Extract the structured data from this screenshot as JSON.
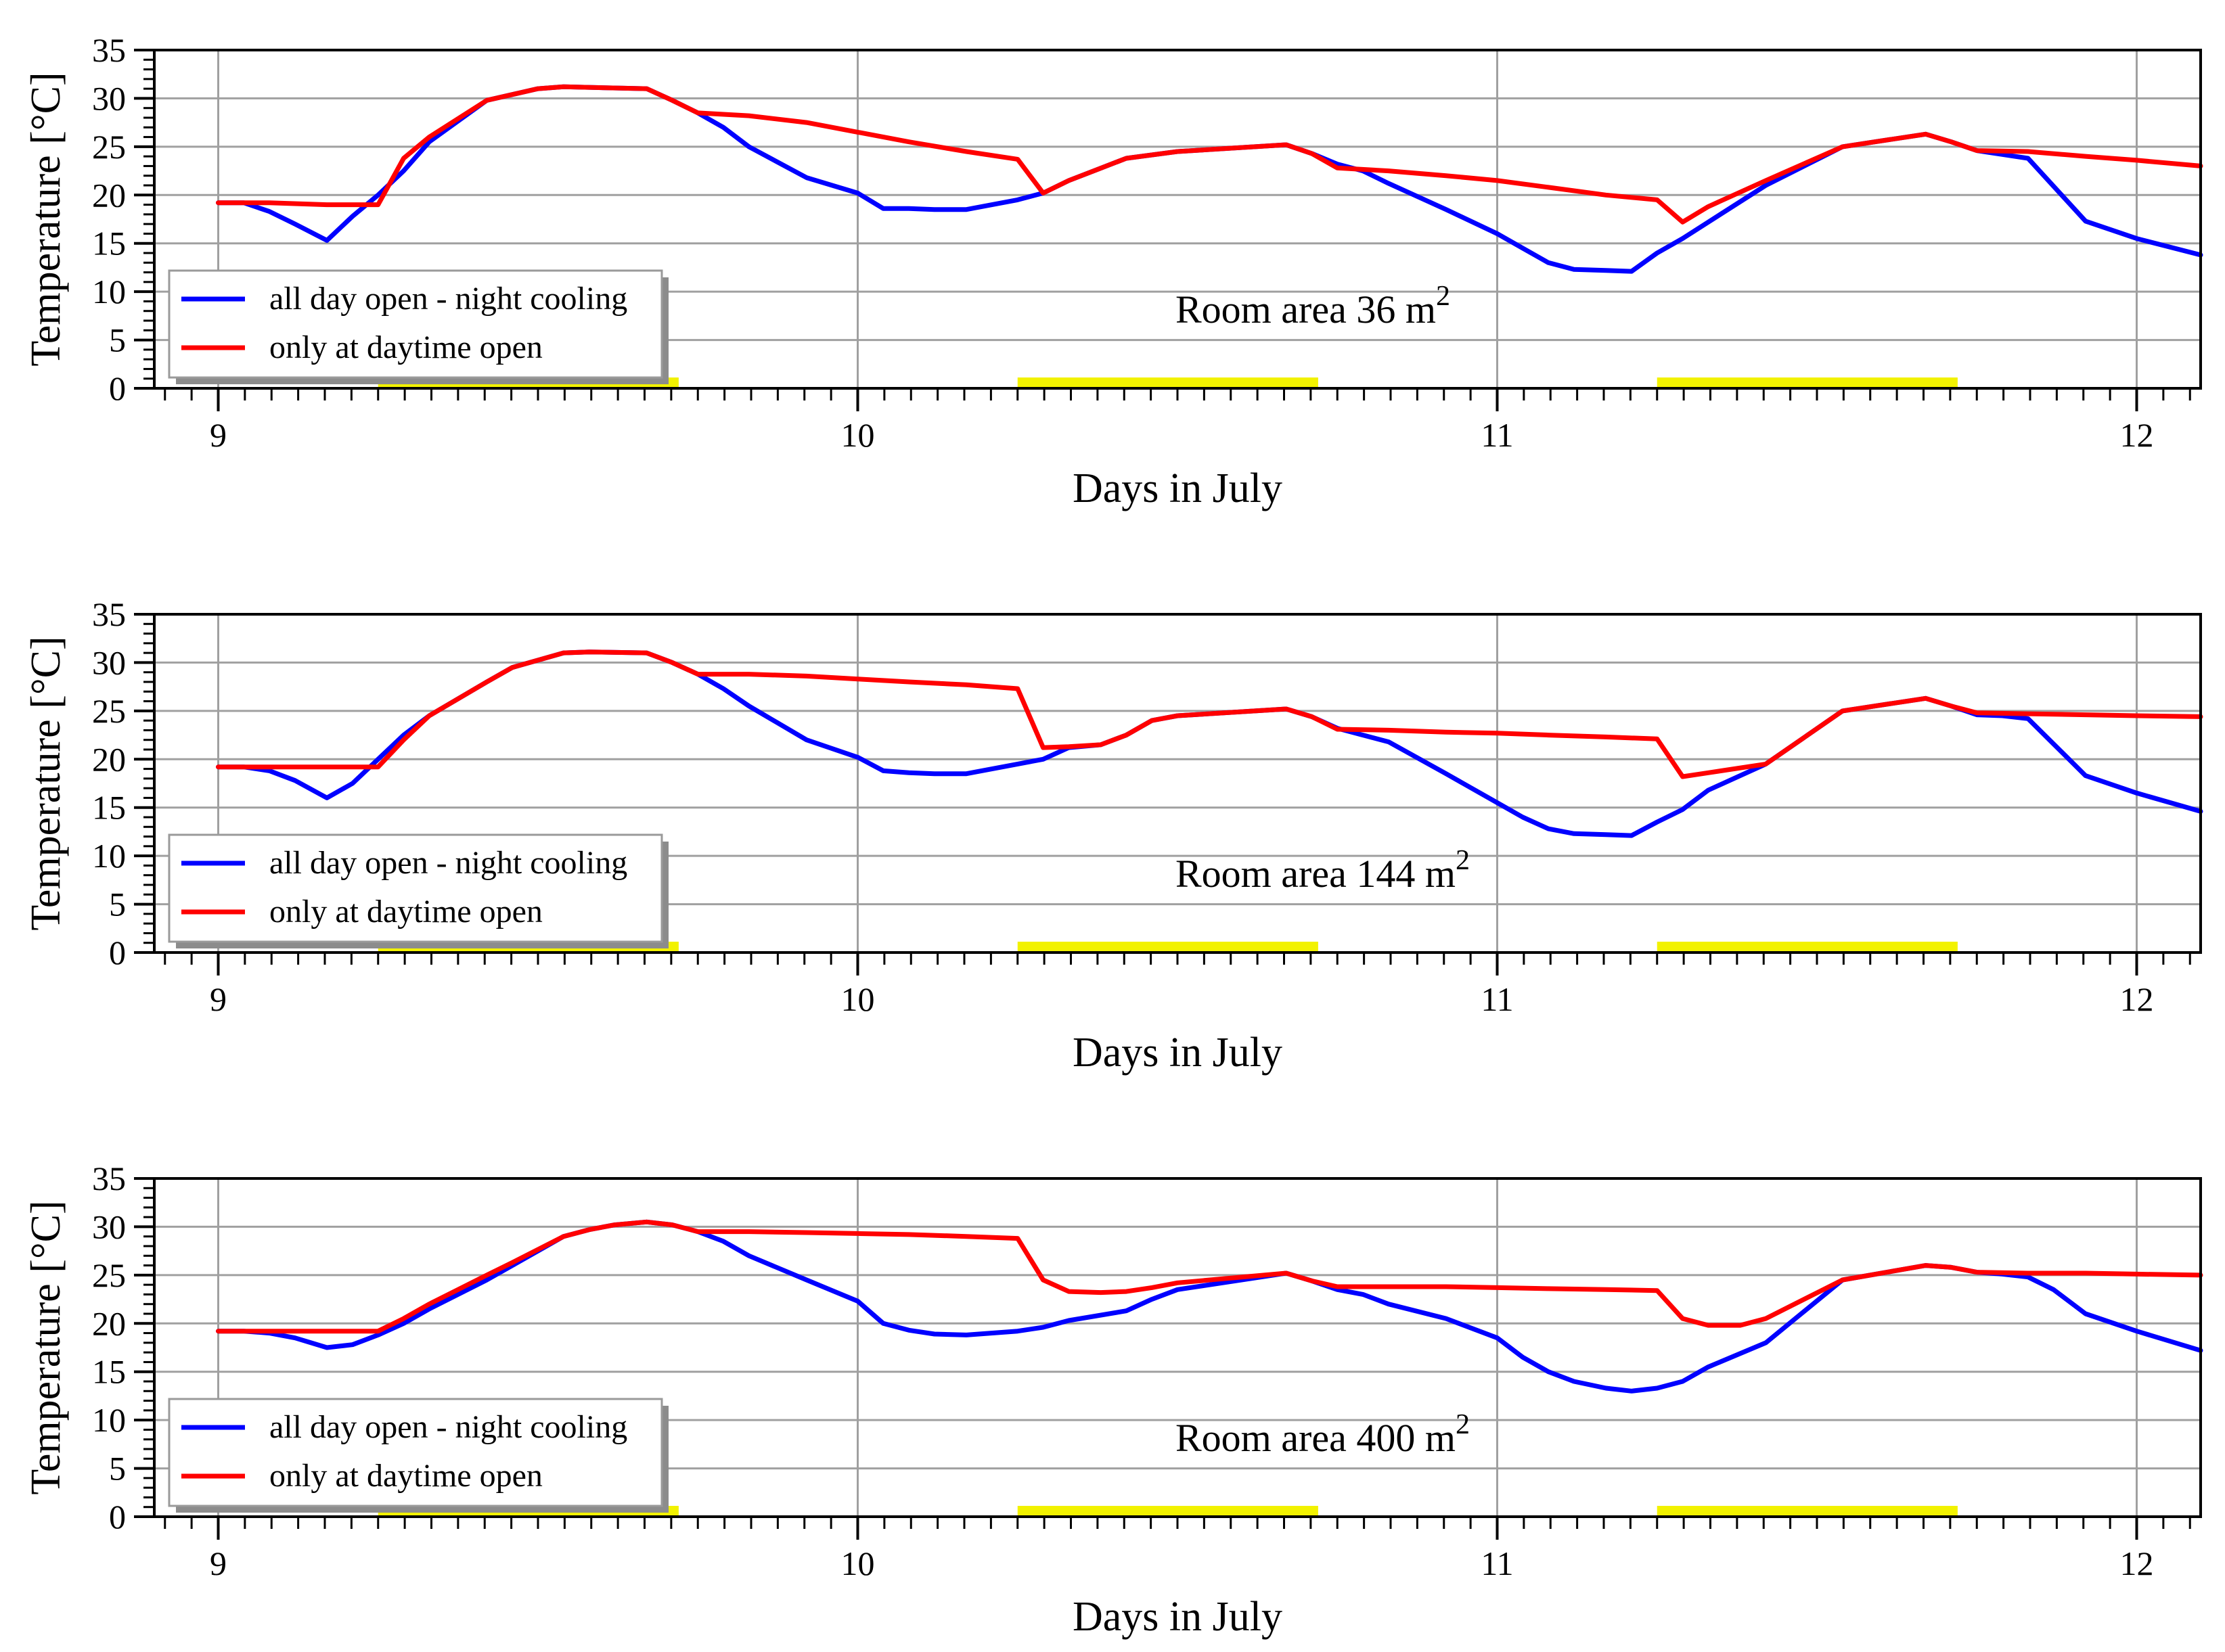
{
  "figure_title": "",
  "colors": {
    "series1": "#0000ff",
    "series2": "#ff0000",
    "highlight": "#f2f200",
    "grid": "#a0a0a0"
  },
  "chart_data": [
    {
      "type": "line",
      "annotation": "Room area 36 m",
      "annotation_sup": "2",
      "xlabel": "Days in July",
      "ylabel": "Temperature [°C]",
      "xlim": [
        8.9,
        12.1
      ],
      "ylim": [
        0,
        35
      ],
      "xticks": [
        9,
        10,
        11,
        12
      ],
      "xtick_labels": [
        "9",
        "10",
        "11",
        "12"
      ],
      "yticks": [
        0,
        5,
        10,
        15,
        20,
        25,
        30,
        35
      ],
      "ytick_labels": [
        "0",
        "5",
        "10",
        "15",
        "20",
        "25",
        "30",
        "35"
      ],
      "grid": true,
      "legend_position": "lower-left",
      "highlight_ranges": [
        [
          9.25,
          9.72
        ],
        [
          10.25,
          10.72
        ],
        [
          11.25,
          11.72
        ]
      ],
      "series": [
        {
          "name": "all day open - night cooling",
          "x": [
            9.0,
            9.04,
            9.08,
            9.12,
            9.17,
            9.21,
            9.25,
            9.29,
            9.33,
            9.42,
            9.5,
            9.54,
            9.67,
            9.71,
            9.75,
            9.79,
            9.83,
            9.92,
            10.0,
            10.04,
            10.08,
            10.12,
            10.17,
            10.25,
            10.29,
            10.33,
            10.42,
            10.5,
            10.67,
            10.71,
            10.75,
            10.79,
            10.83,
            10.92,
            11.0,
            11.04,
            11.08,
            11.12,
            11.17,
            11.21,
            11.25,
            11.29,
            11.33,
            11.42,
            11.54,
            11.67,
            11.71,
            11.75,
            11.79,
            11.83,
            11.92,
            12.0,
            12.1
          ],
          "y": [
            19.2,
            19.2,
            18.3,
            17.0,
            15.3,
            17.8,
            20.0,
            22.5,
            25.5,
            29.8,
            31.0,
            31.2,
            31.0,
            29.8,
            28.5,
            27.0,
            25.0,
            21.8,
            20.2,
            18.6,
            18.6,
            18.5,
            18.5,
            19.5,
            20.2,
            21.5,
            23.8,
            24.5,
            25.2,
            24.3,
            23.2,
            22.5,
            21.2,
            18.5,
            16.0,
            14.5,
            13.0,
            12.3,
            12.2,
            12.1,
            14.0,
            15.5,
            17.2,
            21.0,
            25.0,
            26.3,
            25.5,
            24.6,
            24.2,
            23.8,
            17.3,
            15.5,
            13.8
          ]
        },
        {
          "name": "only at daytime open",
          "x": [
            9.0,
            9.08,
            9.17,
            9.21,
            9.25,
            9.29,
            9.33,
            9.42,
            9.5,
            9.54,
            9.67,
            9.71,
            9.75,
            9.83,
            9.92,
            10.0,
            10.08,
            10.17,
            10.25,
            10.29,
            10.33,
            10.42,
            10.5,
            10.67,
            10.71,
            10.75,
            10.83,
            10.92,
            11.0,
            11.08,
            11.17,
            11.25,
            11.29,
            11.33,
            11.42,
            11.54,
            11.67,
            11.71,
            11.75,
            11.83,
            11.92,
            12.0,
            12.1
          ],
          "y": [
            19.2,
            19.2,
            19.0,
            19.0,
            19.0,
            23.8,
            26.0,
            29.8,
            31.0,
            31.2,
            31.0,
            29.8,
            28.5,
            28.2,
            27.5,
            26.5,
            25.5,
            24.5,
            23.7,
            20.2,
            21.5,
            23.8,
            24.5,
            25.2,
            24.3,
            22.8,
            22.5,
            22.0,
            21.5,
            20.8,
            20.0,
            19.5,
            17.2,
            18.8,
            21.5,
            25.0,
            26.3,
            25.5,
            24.6,
            24.5,
            24.0,
            23.6,
            23.0
          ]
        }
      ]
    },
    {
      "type": "line",
      "annotation": "Room area 144 m",
      "annotation_sup": "2",
      "xlabel": "Days in July",
      "ylabel": "Temperature [°C]",
      "xlim": [
        8.9,
        12.1
      ],
      "ylim": [
        0,
        35
      ],
      "xticks": [
        9,
        10,
        11,
        12
      ],
      "xtick_labels": [
        "9",
        "10",
        "11",
        "12"
      ],
      "yticks": [
        0,
        5,
        10,
        15,
        20,
        25,
        30,
        35
      ],
      "ytick_labels": [
        "0",
        "5",
        "10",
        "15",
        "20",
        "25",
        "30",
        "35"
      ],
      "grid": true,
      "legend_position": "lower-left",
      "highlight_ranges": [
        [
          9.25,
          9.72
        ],
        [
          10.25,
          10.72
        ],
        [
          11.25,
          11.72
        ]
      ],
      "series": [
        {
          "name": "all day open - night cooling",
          "x": [
            9.0,
            9.04,
            9.08,
            9.12,
            9.17,
            9.21,
            9.25,
            9.29,
            9.33,
            9.42,
            9.46,
            9.54,
            9.58,
            9.67,
            9.71,
            9.75,
            9.79,
            9.83,
            9.92,
            10.0,
            10.04,
            10.08,
            10.12,
            10.17,
            10.25,
            10.29,
            10.33,
            10.38,
            10.42,
            10.46,
            10.5,
            10.67,
            10.71,
            10.75,
            10.79,
            10.83,
            10.92,
            11.0,
            11.04,
            11.08,
            11.12,
            11.17,
            11.21,
            11.25,
            11.29,
            11.33,
            11.42,
            11.54,
            11.67,
            11.71,
            11.75,
            11.79,
            11.83,
            11.92,
            12.0,
            12.1
          ],
          "y": [
            19.2,
            19.2,
            18.8,
            17.8,
            16.0,
            17.5,
            20.0,
            22.5,
            24.5,
            28.0,
            29.5,
            31.0,
            31.1,
            31.0,
            30.0,
            28.8,
            27.3,
            25.5,
            22.0,
            20.2,
            18.8,
            18.6,
            18.5,
            18.5,
            19.5,
            20.0,
            21.2,
            21.5,
            22.5,
            24.0,
            24.5,
            25.2,
            24.4,
            23.2,
            22.5,
            21.8,
            18.5,
            15.5,
            14.0,
            12.8,
            12.3,
            12.2,
            12.1,
            13.5,
            14.8,
            16.8,
            19.5,
            25.0,
            26.3,
            25.5,
            24.6,
            24.5,
            24.2,
            18.3,
            16.5,
            14.6
          ]
        },
        {
          "name": "only at daytime open",
          "x": [
            9.0,
            9.08,
            9.17,
            9.21,
            9.25,
            9.29,
            9.33,
            9.42,
            9.46,
            9.54,
            9.58,
            9.67,
            9.71,
            9.75,
            9.83,
            9.92,
            10.0,
            10.08,
            10.17,
            10.25,
            10.29,
            10.33,
            10.38,
            10.42,
            10.46,
            10.5,
            10.67,
            10.71,
            10.75,
            10.83,
            10.92,
            11.0,
            11.08,
            11.17,
            11.25,
            11.29,
            11.33,
            11.42,
            11.54,
            11.67,
            11.71,
            11.75,
            11.83,
            11.92,
            12.0,
            12.1
          ],
          "y": [
            19.2,
            19.2,
            19.2,
            19.2,
            19.2,
            22.0,
            24.5,
            28.0,
            29.5,
            31.0,
            31.1,
            31.0,
            30.0,
            28.8,
            28.8,
            28.6,
            28.3,
            28.0,
            27.7,
            27.3,
            21.2,
            21.3,
            21.5,
            22.5,
            24.0,
            24.5,
            25.2,
            24.4,
            23.1,
            23.0,
            22.8,
            22.7,
            22.5,
            22.3,
            22.1,
            18.2,
            18.6,
            19.5,
            25.0,
            26.3,
            25.5,
            24.8,
            24.7,
            24.6,
            24.5,
            24.4
          ]
        }
      ]
    },
    {
      "type": "line",
      "annotation": "Room area 400 m",
      "annotation_sup": "2",
      "xlabel": "Days in July",
      "ylabel": "Temperature [°C]",
      "xlim": [
        8.9,
        12.1
      ],
      "ylim": [
        0,
        35
      ],
      "xticks": [
        9,
        10,
        11,
        12
      ],
      "xtick_labels": [
        "9",
        "10",
        "11",
        "12"
      ],
      "yticks": [
        0,
        5,
        10,
        15,
        20,
        25,
        30,
        35
      ],
      "ytick_labels": [
        "0",
        "5",
        "10",
        "15",
        "20",
        "25",
        "30",
        "35"
      ],
      "grid": true,
      "legend_position": "lower-left",
      "highlight_ranges": [
        [
          9.25,
          9.72
        ],
        [
          10.25,
          10.72
        ],
        [
          11.25,
          11.72
        ]
      ],
      "series": [
        {
          "name": "all day open - night cooling",
          "x": [
            9.0,
            9.04,
            9.08,
            9.12,
            9.17,
            9.21,
            9.25,
            9.29,
            9.33,
            9.42,
            9.46,
            9.54,
            9.58,
            9.62,
            9.67,
            9.71,
            9.75,
            9.79,
            9.83,
            9.92,
            10.0,
            10.04,
            10.08,
            10.12,
            10.17,
            10.25,
            10.29,
            10.33,
            10.42,
            10.46,
            10.5,
            10.67,
            10.71,
            10.75,
            10.79,
            10.83,
            10.92,
            11.0,
            11.04,
            11.08,
            11.12,
            11.17,
            11.21,
            11.25,
            11.29,
            11.33,
            11.42,
            11.54,
            11.67,
            11.71,
            11.75,
            11.79,
            11.83,
            11.87,
            11.92,
            12.0,
            12.1
          ],
          "y": [
            19.2,
            19.2,
            19.0,
            18.5,
            17.5,
            17.8,
            18.8,
            20.0,
            21.5,
            24.5,
            26.0,
            29.0,
            29.7,
            30.2,
            30.5,
            30.2,
            29.5,
            28.5,
            27.0,
            24.5,
            22.3,
            20.0,
            19.3,
            18.9,
            18.8,
            19.2,
            19.6,
            20.3,
            21.3,
            22.5,
            23.5,
            25.2,
            24.4,
            23.5,
            23.0,
            22.0,
            20.5,
            18.5,
            16.5,
            15.0,
            14.0,
            13.3,
            13.0,
            13.3,
            14.0,
            15.5,
            18.0,
            24.5,
            26.0,
            25.8,
            25.3,
            25.1,
            24.8,
            23.5,
            21.0,
            19.2,
            17.2
          ]
        },
        {
          "name": "only at daytime open",
          "x": [
            9.0,
            9.08,
            9.17,
            9.21,
            9.25,
            9.29,
            9.33,
            9.42,
            9.46,
            9.54,
            9.58,
            9.62,
            9.67,
            9.71,
            9.75,
            9.83,
            9.92,
            10.0,
            10.08,
            10.17,
            10.25,
            10.29,
            10.33,
            10.38,
            10.42,
            10.46,
            10.5,
            10.67,
            10.71,
            10.75,
            10.83,
            10.92,
            11.0,
            11.08,
            11.17,
            11.25,
            11.29,
            11.33,
            11.38,
            11.42,
            11.54,
            11.67,
            11.71,
            11.75,
            11.83,
            11.92,
            12.0,
            12.1
          ],
          "y": [
            19.2,
            19.2,
            19.2,
            19.2,
            19.2,
            20.5,
            22.0,
            25.0,
            26.3,
            29.0,
            29.7,
            30.2,
            30.5,
            30.2,
            29.5,
            29.5,
            29.4,
            29.3,
            29.2,
            29.0,
            28.8,
            24.5,
            23.3,
            23.2,
            23.3,
            23.7,
            24.2,
            25.2,
            24.4,
            23.8,
            23.8,
            23.8,
            23.7,
            23.6,
            23.5,
            23.4,
            20.5,
            19.8,
            19.8,
            20.5,
            24.5,
            26.0,
            25.8,
            25.3,
            25.2,
            25.2,
            25.1,
            25.0
          ]
        }
      ]
    }
  ]
}
